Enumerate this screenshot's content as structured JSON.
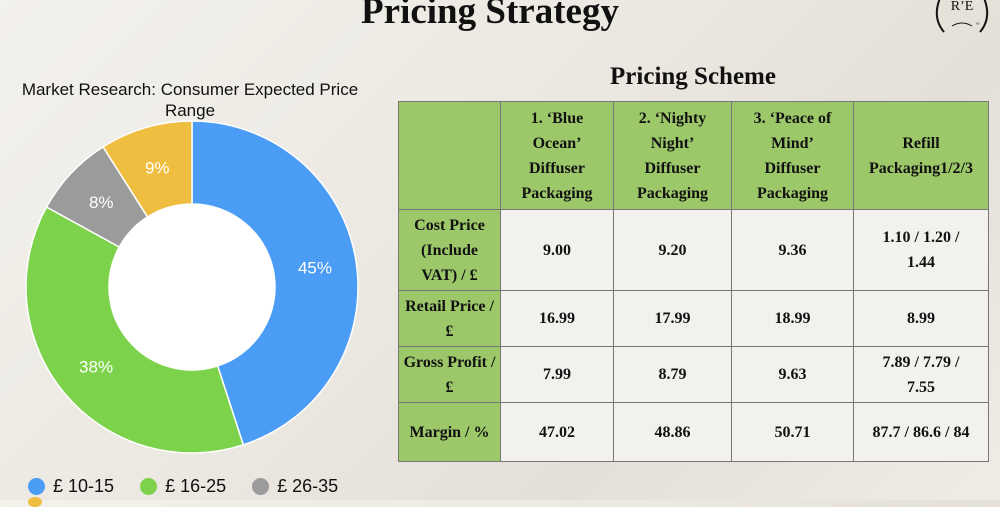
{
  "page": {
    "title": "Pricing Strategy"
  },
  "logo": {
    "text": "R E"
  },
  "colors": {
    "blue": "#4a9cf4",
    "green": "#7cd24a",
    "gray": "#9b9b9b",
    "yellow": "#efbd3f",
    "table_header": "#9dc86a",
    "table_cell": "#f2f1ee"
  },
  "chart_data": {
    "type": "pie",
    "title": "Market Research: Consumer Expected Price Range",
    "categories": [
      "£ 10-15",
      "£ 16-25",
      "£ 26-35",
      ""
    ],
    "values": [
      45,
      38,
      8,
      9
    ],
    "labels": [
      "45%",
      "38%",
      "8%",
      "9%"
    ],
    "colors": [
      "#4a9cf4",
      "#7cd24a",
      "#9b9b9b",
      "#efbd3f"
    ],
    "donut": true,
    "legend_placement": "bottom"
  },
  "table": {
    "title": "Pricing Scheme",
    "headers": [
      "",
      "1. ‘Blue Ocean’ Diffuser Packaging",
      "2. ‘Nighty Night’ Diffuser Packaging",
      "3. ‘Peace of Mind’ Diffuser Packaging",
      "Refill Packaging1/2/3"
    ],
    "rows": [
      {
        "label": "Cost Price (Include VAT) / £",
        "values": [
          "9.00",
          "9.20",
          "9.36",
          "1.10 / 1.20 / 1.44"
        ]
      },
      {
        "label": "Retail Price / £",
        "values": [
          "16.99",
          "17.99",
          "18.99",
          "8.99"
        ]
      },
      {
        "label": "Gross Profit / £",
        "values": [
          "7.99",
          "8.79",
          "9.63",
          "7.89 / 7.79 / 7.55"
        ]
      },
      {
        "label": "Margin / %",
        "values": [
          "47.02",
          "48.86",
          "50.71",
          "87.7 / 86.6 / 84"
        ]
      }
    ]
  }
}
